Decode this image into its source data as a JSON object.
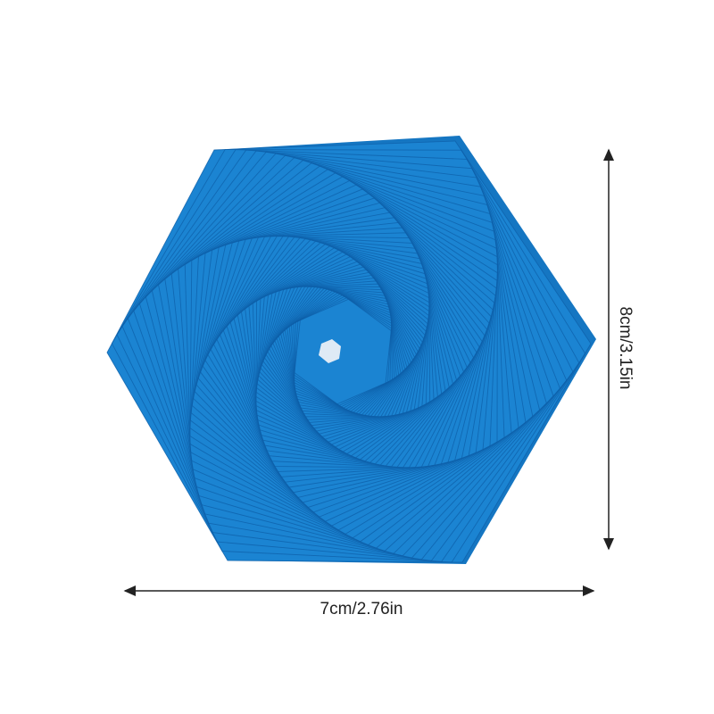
{
  "product": {
    "name_icon": "hexagon-spiral-silicone-mat",
    "color": "#1b84d2",
    "line_color": "#0d5fa8"
  },
  "dimensions": {
    "width_label": "7cm/2.76in",
    "height_label": "8cm/3.15in"
  }
}
